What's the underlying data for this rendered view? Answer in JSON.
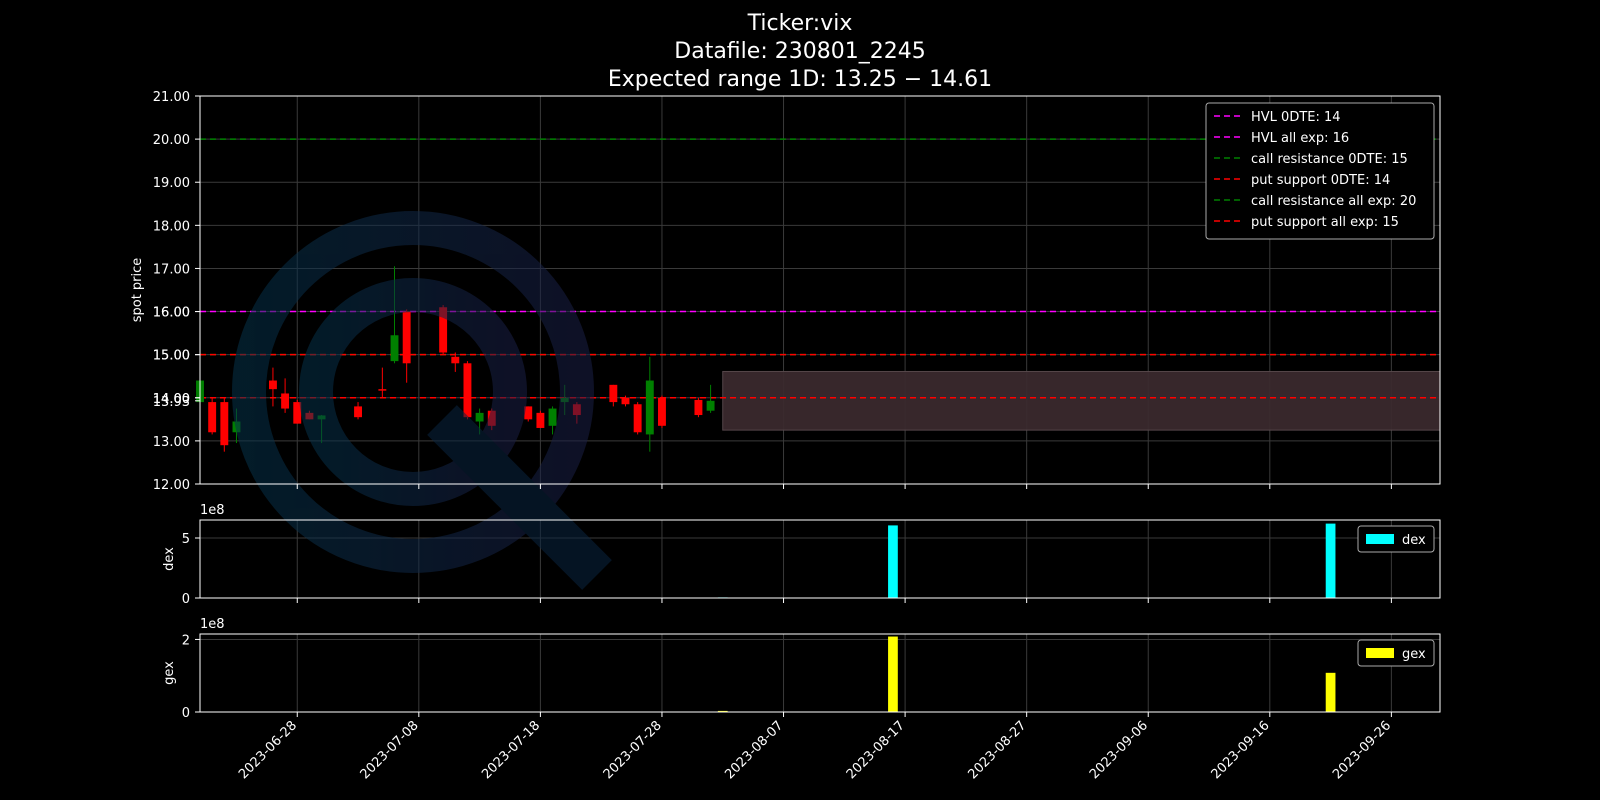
{
  "title": {
    "line1": "Ticker:vix",
    "line2": "Datafile: 230801_2245",
    "line3": "Expected range 1D: 13.25 − 14.61"
  },
  "colors": {
    "background": "#000000",
    "grid": "#3a3a3a",
    "up": "#008000",
    "down": "#ff0000",
    "hvl": "#ff00ff",
    "call": "#008000",
    "put": "#ff0000",
    "range_fill": "#3a2a2e",
    "dex": "#00ffff",
    "gex": "#ffff00",
    "watermark": "#0a3a55"
  },
  "watermark": {
    "icon": "magnifier-q-logo-icon"
  },
  "chart_data": [
    {
      "type": "candlestick",
      "ylabel": "spot price",
      "ylim": [
        12,
        21
      ],
      "xlim": [
        "2023-06-20",
        "2023-09-30"
      ],
      "y_ticks": [
        "12.00",
        "13.00",
        "14.00",
        "15.00",
        "16.00",
        "17.00",
        "18.00",
        "19.00",
        "20.00",
        "21.00"
      ],
      "extra_y_ticks": [
        {
          "value": 13.93,
          "label": "13.93"
        },
        {
          "value": 14.0,
          "label": "14.00"
        },
        {
          "value": 15.0,
          "label": "15.00"
        },
        {
          "value": 16.0,
          "label": "16.00"
        }
      ],
      "x_ticks": [
        "2023-06-28",
        "2023-07-08",
        "2023-07-18",
        "2023-07-28",
        "2023-08-07",
        "2023-08-17",
        "2023-08-27",
        "2023-09-06",
        "2023-09-16",
        "2023-09-26"
      ],
      "grid": true,
      "legend_position": "top-right",
      "candles": [
        {
          "date": "2023-06-20",
          "open": 13.9,
          "high": 14.4,
          "low": 13.7,
          "close": 14.4
        },
        {
          "date": "2023-06-21",
          "open": 13.9,
          "high": 14.0,
          "low": 13.15,
          "close": 13.2
        },
        {
          "date": "2023-06-22",
          "open": 13.9,
          "high": 14.0,
          "low": 12.75,
          "close": 12.9
        },
        {
          "date": "2023-06-23",
          "open": 13.2,
          "high": 13.75,
          "low": 12.95,
          "close": 13.45
        },
        {
          "date": "2023-06-26",
          "open": 14.4,
          "high": 14.7,
          "low": 13.8,
          "close": 14.2
        },
        {
          "date": "2023-06-27",
          "open": 14.1,
          "high": 14.45,
          "low": 13.65,
          "close": 13.75
        },
        {
          "date": "2023-06-28",
          "open": 13.9,
          "high": 13.95,
          "low": 13.4,
          "close": 13.4
        },
        {
          "date": "2023-06-29",
          "open": 13.65,
          "high": 13.7,
          "low": 13.5,
          "close": 13.5
        },
        {
          "date": "2023-06-30",
          "open": 13.5,
          "high": 13.6,
          "low": 12.95,
          "close": 13.59
        },
        {
          "date": "2023-07-03",
          "open": 13.8,
          "high": 13.9,
          "low": 13.5,
          "close": 13.55
        },
        {
          "date": "2023-07-05",
          "open": 14.2,
          "high": 14.7,
          "low": 14.0,
          "close": 14.18
        },
        {
          "date": "2023-07-06",
          "open": 14.85,
          "high": 17.05,
          "low": 14.8,
          "close": 15.45
        },
        {
          "date": "2023-07-07",
          "open": 16.0,
          "high": 16.05,
          "low": 14.35,
          "close": 14.8
        },
        {
          "date": "2023-07-10",
          "open": 16.1,
          "high": 16.15,
          "low": 15.0,
          "close": 15.05
        },
        {
          "date": "2023-07-11",
          "open": 14.95,
          "high": 15.05,
          "low": 14.6,
          "close": 14.8
        },
        {
          "date": "2023-07-12",
          "open": 14.8,
          "high": 14.85,
          "low": 13.5,
          "close": 13.55
        },
        {
          "date": "2023-07-13",
          "open": 13.45,
          "high": 13.75,
          "low": 13.15,
          "close": 13.65
        },
        {
          "date": "2023-07-14",
          "open": 13.7,
          "high": 13.75,
          "low": 13.25,
          "close": 13.35
        },
        {
          "date": "2023-07-17",
          "open": 13.8,
          "high": 13.8,
          "low": 13.45,
          "close": 13.5
        },
        {
          "date": "2023-07-18",
          "open": 13.65,
          "high": 13.7,
          "low": 13.3,
          "close": 13.3
        },
        {
          "date": "2023-07-19",
          "open": 13.35,
          "high": 13.8,
          "low": 13.15,
          "close": 13.75
        },
        {
          "date": "2023-07-20",
          "open": 13.9,
          "high": 14.3,
          "low": 13.6,
          "close": 14.0
        },
        {
          "date": "2023-07-21",
          "open": 13.85,
          "high": 13.9,
          "low": 13.4,
          "close": 13.6
        },
        {
          "date": "2023-07-24",
          "open": 14.3,
          "high": 14.3,
          "low": 13.8,
          "close": 13.9
        },
        {
          "date": "2023-07-25",
          "open": 14.0,
          "high": 14.05,
          "low": 13.8,
          "close": 13.85
        },
        {
          "date": "2023-07-26",
          "open": 13.85,
          "high": 13.9,
          "low": 13.15,
          "close": 13.2
        },
        {
          "date": "2023-07-27",
          "open": 13.15,
          "high": 14.95,
          "low": 12.75,
          "close": 14.4
        },
        {
          "date": "2023-07-28",
          "open": 14.0,
          "high": 14.05,
          "low": 13.3,
          "close": 13.35
        },
        {
          "date": "2023-07-31",
          "open": 13.95,
          "high": 14.0,
          "low": 13.55,
          "close": 13.6
        },
        {
          "date": "2023-08-01",
          "open": 13.7,
          "high": 14.3,
          "low": 13.65,
          "close": 13.93
        }
      ],
      "levels": [
        {
          "label": "HVL 0DTE: 14",
          "value": 14,
          "color": "#ff00ff"
        },
        {
          "label": "HVL all exp: 16",
          "value": 16,
          "color": "#ff00ff"
        },
        {
          "label": "call resistance 0DTE: 15",
          "value": 15,
          "color": "#008000"
        },
        {
          "label": "put support 0DTE: 14",
          "value": 14,
          "color": "#ff0000"
        },
        {
          "label": "call resistance all exp: 20",
          "value": 20,
          "color": "#008000"
        },
        {
          "label": "put support all exp: 15",
          "value": 15,
          "color": "#ff0000"
        }
      ],
      "expected_range": {
        "low": 13.25,
        "high": 14.61,
        "from": "2023-08-02",
        "to": "2023-09-30"
      }
    },
    {
      "type": "bar",
      "ylabel": "dex",
      "multiplier": "1e8",
      "ylim": [
        0,
        6.5
      ],
      "y_ticks": [
        "0",
        "5"
      ],
      "legend": "dex",
      "legend_position": "top-right",
      "grid": true,
      "bars": [
        {
          "date": "2023-08-02",
          "value": 0.05
        },
        {
          "date": "2023-08-16",
          "value": 6.05
        },
        {
          "date": "2023-09-21",
          "value": 6.2
        }
      ]
    },
    {
      "type": "bar",
      "ylabel": "gex",
      "multiplier": "1e8",
      "ylim": [
        0,
        2.15
      ],
      "y_ticks": [
        "0",
        "2"
      ],
      "legend": "gex",
      "legend_position": "top-right",
      "grid": true,
      "bars": [
        {
          "date": "2023-08-02",
          "value": 0.03
        },
        {
          "date": "2023-08-16",
          "value": 2.08
        },
        {
          "date": "2023-09-21",
          "value": 1.08
        }
      ]
    }
  ]
}
